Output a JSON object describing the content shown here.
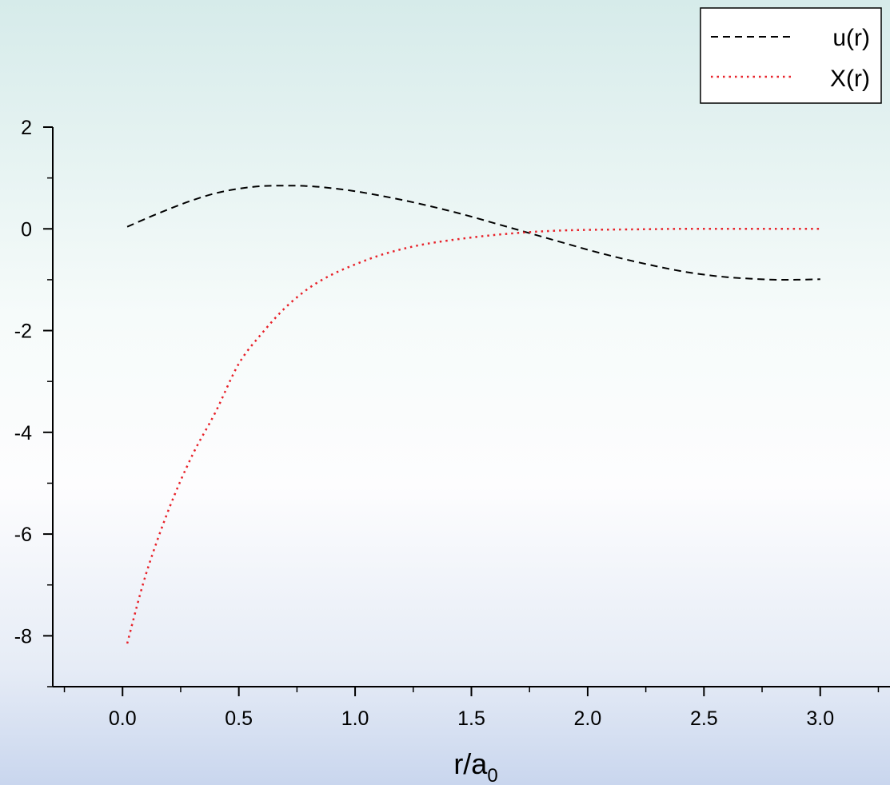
{
  "chart_data": {
    "type": "line",
    "title": "",
    "xlabel": "r/a",
    "xlabel_subscript": "0",
    "ylabel": "",
    "xlim": [
      -0.3,
      3.3
    ],
    "ylim": [
      -9,
      2
    ],
    "x_ticks": [
      0.0,
      0.5,
      1.0,
      1.5,
      2.0,
      2.5,
      3.0
    ],
    "x_tick_labels": [
      "0.0",
      "0.5",
      "1.0",
      "1.5",
      "2.0",
      "2.5",
      "3.0"
    ],
    "y_ticks": [
      2,
      0,
      -2,
      -4,
      -6,
      -8
    ],
    "y_tick_labels": [
      "2",
      "0",
      "-2",
      "-4",
      "-6",
      "-8"
    ],
    "grid": false,
    "legend_position": "top-right",
    "series": [
      {
        "name": "u(r)",
        "color": "#000000",
        "dash": "dashed",
        "x": [
          0.02,
          0.1,
          0.2,
          0.3,
          0.4,
          0.5,
          0.6,
          0.7,
          0.8,
          0.9,
          1.0,
          1.1,
          1.2,
          1.3,
          1.4,
          1.5,
          1.6,
          1.7,
          1.8,
          1.9,
          2.0,
          2.1,
          2.2,
          2.3,
          2.4,
          2.5,
          2.6,
          2.7,
          2.8,
          2.9,
          3.0
        ],
        "y": [
          0.04,
          0.2,
          0.39,
          0.56,
          0.7,
          0.79,
          0.84,
          0.85,
          0.84,
          0.8,
          0.74,
          0.66,
          0.57,
          0.47,
          0.36,
          0.24,
          0.11,
          -0.02,
          -0.15,
          -0.28,
          -0.41,
          -0.53,
          -0.64,
          -0.74,
          -0.83,
          -0.9,
          -0.95,
          -0.98,
          -1.0,
          -1.0,
          -0.99
        ]
      },
      {
        "name": "X(r)",
        "color": "#e8222a",
        "dash": "dotted",
        "x": [
          0.02,
          0.1,
          0.2,
          0.3,
          0.4,
          0.5,
          0.6,
          0.7,
          0.8,
          0.9,
          1.0,
          1.1,
          1.2,
          1.3,
          1.4,
          1.5,
          1.6,
          1.7,
          1.8,
          1.9,
          2.0,
          2.2,
          2.4,
          2.6,
          2.8,
          3.0
        ],
        "y": [
          -8.15,
          -6.8,
          -5.5,
          -4.45,
          -3.6,
          -2.65,
          -2.05,
          -1.55,
          -1.17,
          -0.9,
          -0.7,
          -0.53,
          -0.4,
          -0.3,
          -0.23,
          -0.17,
          -0.12,
          -0.08,
          -0.05,
          -0.03,
          -0.02,
          -0.01,
          0.0,
          0.0,
          0.0,
          0.0
        ]
      }
    ]
  }
}
